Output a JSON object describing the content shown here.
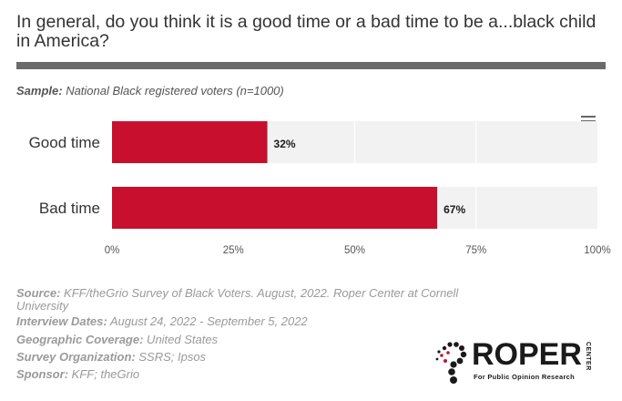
{
  "title": "In general, do you think it is a good time or a bad time to be a...black child in America?",
  "sample": {
    "label": "Sample:",
    "value": " National Black registered voters (n=1000)"
  },
  "chart_data": {
    "type": "bar",
    "orientation": "horizontal",
    "categories": [
      "Good time",
      "Bad time"
    ],
    "values": [
      32,
      67
    ],
    "data_labels": [
      "32%",
      "67%"
    ],
    "xlim": [
      0,
      100
    ],
    "x_ticks": [
      "0%",
      "25%",
      "50%",
      "75%",
      "100%"
    ],
    "bar_color": "#c8102e",
    "track_color": "#f2f2f2",
    "grid": true
  },
  "meta": {
    "source_label": "Source:",
    "source_value": " KFF/theGrio Survey of Black Voters. August, 2022. Roper Center at Cornell University",
    "dates_label": "Interview Dates:",
    "dates_value": " August 24, 2022 - September 5, 2022",
    "geo_label": "Geographic Coverage:",
    "geo_value": " United States",
    "org_label": "Survey Organization:",
    "org_value": " SSRS; Ipsos",
    "sponsor_label": "Sponsor:",
    "sponsor_value": " KFF; theGrio"
  },
  "logo": {
    "word": "ROPER",
    "center": "CENTER",
    "tagline": "For Public Opinion Research",
    "accent_color": "#c8102e"
  },
  "menu_icon": "hamburger-menu-icon"
}
